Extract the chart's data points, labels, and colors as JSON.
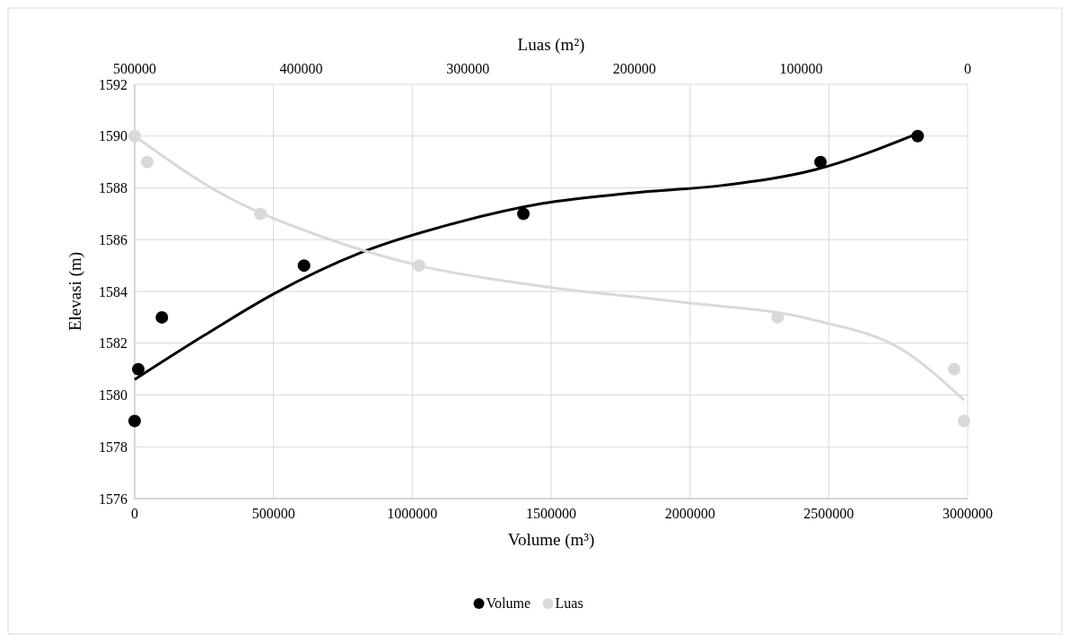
{
  "chart_data": {
    "type": "scatter",
    "xlabel": "Volume (m³)",
    "ylabel": "Elevasi (m)",
    "x2label": "Luas (m²)",
    "xlim": [
      0,
      3000000
    ],
    "xticks": [
      0,
      500000,
      1000000,
      1500000,
      2000000,
      2500000,
      3000000
    ],
    "x2lim": [
      500000,
      0
    ],
    "x2ticks": [
      500000,
      400000,
      300000,
      200000,
      100000,
      0
    ],
    "ylim": [
      1576,
      1592
    ],
    "yticks": [
      1576,
      1578,
      1580,
      1582,
      1584,
      1586,
      1588,
      1590,
      1592
    ],
    "grid": true,
    "legend": "bottom",
    "series": [
      {
        "name": "Volume",
        "color": "#000000",
        "marker": "circle",
        "x": [
          0,
          13000,
          98000,
          610000,
          1400000,
          2470000,
          2820000
        ],
        "values": [
          1579,
          1581,
          1583,
          1585,
          1587,
          1589,
          1590
        ]
      },
      {
        "name": "Luas",
        "color": "#d9d9d9",
        "marker": "circle",
        "axis": "x2",
        "x": [
          500000,
          492400,
          424500,
          329300,
          114100,
          8150,
          2200
        ],
        "values": [
          1590,
          1589,
          1587,
          1585,
          1583,
          1581,
          1579
        ]
      },
      {
        "type": "line",
        "color": "#000000",
        "x": [
          0,
          250000,
          500000,
          815000,
          1140000,
          1470000,
          1790000,
          2120000,
          2450000,
          2820000
        ],
        "values": [
          1580.6,
          1582.3,
          1583.9,
          1585.5,
          1586.6,
          1587.4,
          1587.8,
          1588.1,
          1588.7,
          1590.1
        ]
      },
      {
        "type": "line",
        "color": "#d9d9d9",
        "axis": "x2",
        "x": [
          500000,
          445700,
          391300,
          329300,
          255400,
          173900,
          92400,
          38000,
          2200
        ],
        "values": [
          1590,
          1587.7,
          1586.2,
          1585,
          1584.2,
          1583.6,
          1582.9,
          1581.7,
          1579.8
        ]
      }
    ]
  }
}
